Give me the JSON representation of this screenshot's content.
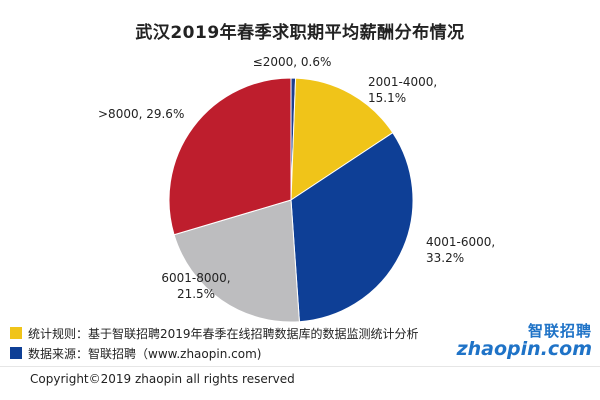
{
  "chart_data": {
    "type": "pie",
    "title": "武汉2019年春季求职期平均薪酬分布情况",
    "slices": [
      {
        "label": "≤2000",
        "value": 0.6,
        "display": "0.6%",
        "color": "#1f3f8f"
      },
      {
        "label": "2001-4000",
        "value": 15.1,
        "display": "15.1%",
        "color": "#f0c419"
      },
      {
        "label": "4001-6000",
        "value": 33.2,
        "display": "33.2%",
        "color": "#0e3f96"
      },
      {
        "label": "6001-8000",
        "value": 21.5,
        "display": "21.5%",
        "color": "#bdbdbf"
      },
      {
        "label": ">8000",
        "value": 29.6,
        "display": "29.6%",
        "color": "#be1e2d"
      }
    ]
  },
  "notes": {
    "rule": {
      "text": "统计规则：基于智联招聘2019年春季在线招聘数据库的数据监测统计分析",
      "color": "#f0c419"
    },
    "source": {
      "text": "数据来源：智联招聘（www.zhaopin.com)",
      "color": "#0e3f96"
    }
  },
  "logo": {
    "cn": "智联招聘",
    "en": "zhaopin.com"
  },
  "copyright": "Copyright©2019 zhaopin all rights reserved"
}
